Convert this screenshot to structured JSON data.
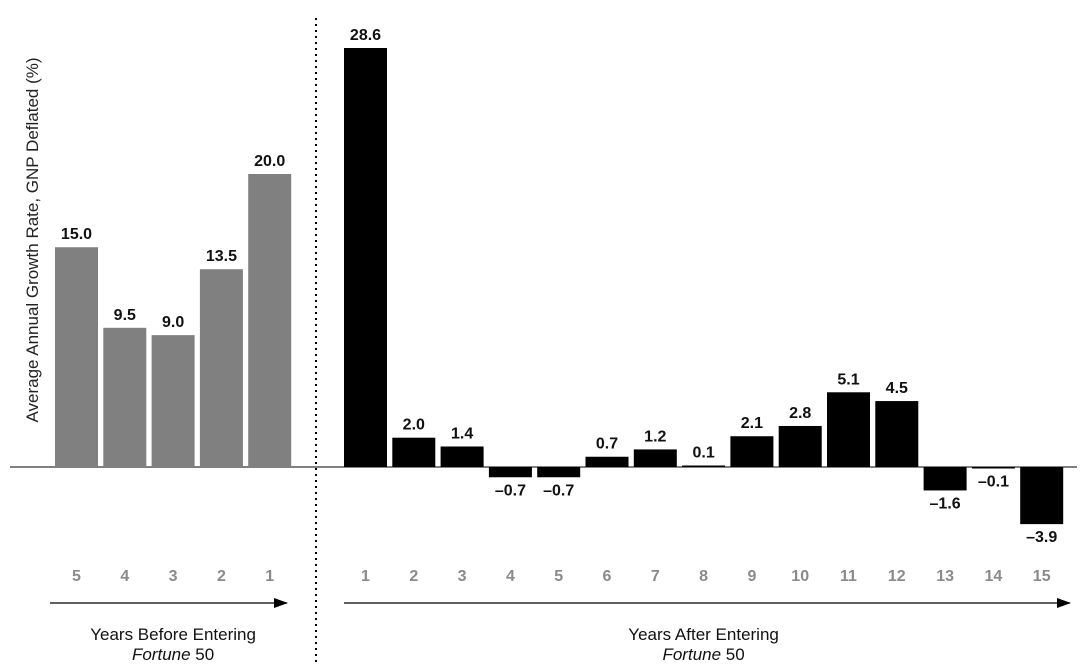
{
  "chart_data": {
    "type": "bar",
    "ylabel": "Average Annual Growth Rate, GNP Deflated (%)",
    "ylim": [
      -4.5,
      30
    ],
    "groups": [
      {
        "name_line1": "Years Before Entering",
        "name_line2_italic": "Fortune",
        "name_line2_rest": " 50",
        "color": "#808080",
        "categories": [
          "5",
          "4",
          "3",
          "2",
          "1"
        ],
        "values": [
          15.0,
          9.5,
          9.0,
          13.5,
          20.0
        ],
        "labels": [
          "15.0",
          "9.5",
          "9.0",
          "13.5",
          "20.0"
        ]
      },
      {
        "name_line1": "Years After Entering",
        "name_line2_italic": "Fortune",
        "name_line2_rest": " 50",
        "color": "#000000",
        "categories": [
          "1",
          "2",
          "3",
          "4",
          "5",
          "6",
          "7",
          "8",
          "9",
          "10",
          "11",
          "12",
          "13",
          "14",
          "15"
        ],
        "values": [
          28.6,
          2.0,
          1.4,
          -0.7,
          -0.7,
          0.7,
          1.2,
          0.1,
          2.1,
          2.8,
          5.1,
          4.5,
          -1.6,
          -0.1,
          -3.9
        ],
        "labels": [
          "28.6",
          "2.0",
          "1.4",
          "–0.7",
          "–0.7",
          "0.7",
          "1.2",
          "0.1",
          "2.1",
          "2.8",
          "5.1",
          "4.5",
          "–1.6",
          "–0.1",
          "–3.9"
        ]
      }
    ]
  }
}
